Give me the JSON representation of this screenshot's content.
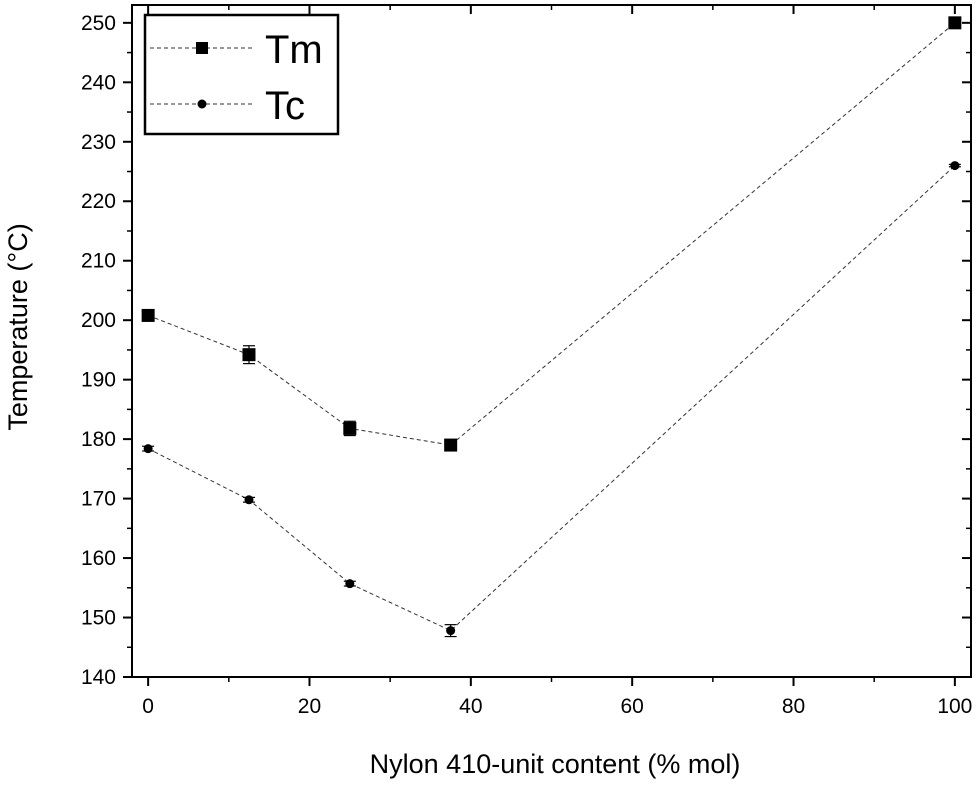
{
  "chart_data": {
    "type": "scatter",
    "xlabel": "Nylon 410-unit content (% mol)",
    "ylabel": "Temperature (°C)",
    "xlim": [
      -2,
      102
    ],
    "ylim": [
      140,
      253
    ],
    "x_ticks": [
      0,
      20,
      40,
      60,
      80,
      100
    ],
    "y_ticks": [
      140,
      150,
      160,
      170,
      180,
      190,
      200,
      210,
      220,
      230,
      240,
      250
    ],
    "grid": false,
    "legend_position": "top-left",
    "line_style": "dashed connecting lines with markers",
    "series": [
      {
        "name": "Tm",
        "marker": "square",
        "color": "#000000",
        "x": [
          0,
          12.5,
          25,
          37.5,
          100
        ],
        "y": [
          200.8,
          194.2,
          181.8,
          179.0,
          250.0
        ],
        "error": [
          0.5,
          1.5,
          1.2,
          0.4,
          0.3
        ]
      },
      {
        "name": "Tc",
        "marker": "circle",
        "color": "#000000",
        "x": [
          0,
          12.5,
          25,
          37.5,
          100
        ],
        "y": [
          178.4,
          169.8,
          155.7,
          147.8,
          226.0
        ],
        "error": [
          0.4,
          0.4,
          0.4,
          1.0,
          0.2
        ]
      }
    ]
  }
}
